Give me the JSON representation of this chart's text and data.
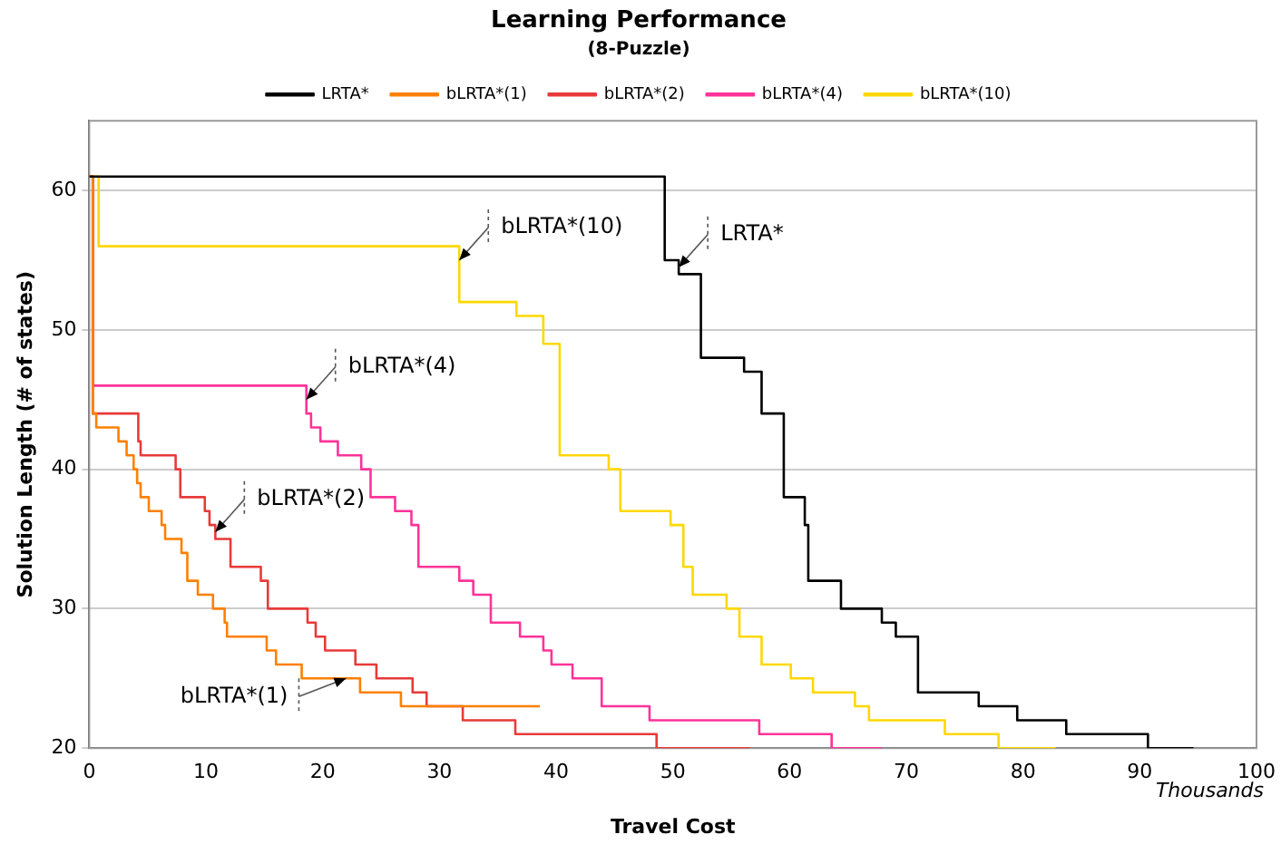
{
  "chart_data": {
    "type": "step",
    "title": "Learning Performance",
    "subtitle": "(8-Puzzle)",
    "xlabel": "Travel Cost",
    "ylabel": "Solution Length (# of states)",
    "xlim": [
      0,
      100
    ],
    "xticks": [
      0,
      10,
      20,
      30,
      40,
      50,
      60,
      70,
      80,
      90,
      100
    ],
    "ylim": [
      20,
      65
    ],
    "yticks": [
      20,
      30,
      40,
      50,
      60
    ],
    "grid": "y",
    "legend": "top",
    "marker": "none",
    "line_style": "solid",
    "series": [
      {
        "name": "LRTA*",
        "color": "#000000",
        "x": [
          0,
          49.3,
          50.5,
          52.4,
          56.1,
          57.6,
          59.5,
          61.3,
          61.6,
          64.4,
          67.9,
          69.1,
          71,
          76.2,
          79.5,
          83.7,
          90.7,
          94.6
        ],
        "values": [
          61,
          55,
          54,
          48,
          47,
          44,
          38,
          36,
          32,
          30,
          29,
          28,
          24,
          23,
          22,
          21,
          20,
          20
        ]
      },
      {
        "name": "bLRTA*(1)",
        "color": "#ff8000",
        "x": [
          0,
          0.3,
          0.6,
          2.5,
          3.2,
          3.8,
          4.1,
          4.4,
          5.1,
          6.2,
          6.5,
          7.9,
          8.4,
          9.3,
          10.6,
          11.6,
          11.8,
          15.2,
          16,
          18.2,
          23.2,
          26.7,
          38.6
        ],
        "values": [
          61,
          44,
          43,
          42,
          41,
          40,
          39,
          38,
          37,
          36,
          35,
          34,
          32,
          31,
          30,
          29,
          28,
          27,
          26,
          25,
          24,
          23,
          23
        ]
      },
      {
        "name": "bLRTA*(2)",
        "color": "#e83a3a",
        "x": [
          0,
          0.3,
          4.2,
          4.4,
          7.4,
          7.8,
          9.9,
          10.3,
          10.8,
          12.1,
          14.7,
          15.3,
          18.7,
          19.4,
          20.2,
          22.8,
          24.6,
          27.7,
          28.9,
          32,
          36.5,
          48.6,
          56.6
        ],
        "values": [
          61,
          44,
          42,
          41,
          40,
          38,
          37,
          36,
          35,
          33,
          32,
          30,
          29,
          28,
          27,
          26,
          25,
          24,
          23,
          22,
          21,
          20,
          20
        ]
      },
      {
        "name": "bLRTA*(4)",
        "color": "#ff3399",
        "x": [
          0,
          0.3,
          18.6,
          19,
          19.8,
          21.3,
          23.3,
          24.1,
          26.2,
          27.6,
          28.2,
          31.7,
          32.9,
          34.4,
          36.9,
          38.9,
          39.6,
          41.4,
          43.9,
          48,
          57.4,
          63.6,
          67.9
        ],
        "values": [
          61,
          46,
          44,
          43,
          42,
          41,
          40,
          38,
          37,
          36,
          33,
          32,
          31,
          29,
          28,
          27,
          26,
          25,
          23,
          22,
          21,
          20,
          20
        ]
      },
      {
        "name": "bLRTA*(10)",
        "color": "#ffd700",
        "x": [
          0,
          0.8,
          31.7,
          36.6,
          38.9,
          40.3,
          44.5,
          45.5,
          49.8,
          50.9,
          51.7,
          54.6,
          55.7,
          57.6,
          60.1,
          62,
          65.6,
          66.8,
          73.3,
          77.9,
          82.8
        ],
        "values": [
          61,
          56,
          52,
          51,
          49,
          41,
          40,
          37,
          36,
          33,
          31,
          30,
          28,
          26,
          25,
          24,
          23,
          22,
          21,
          20,
          20
        ]
      }
    ],
    "annotations": [
      {
        "text": "LRTA*",
        "x": 50.5,
        "y": 54.5
      },
      {
        "text": "bLRTA*(10)",
        "x": 31.7,
        "y": 55
      },
      {
        "text": "bLRTA*(4)",
        "x": 18.6,
        "y": 45
      },
      {
        "text": "bLRTA*(2)",
        "x": 10.8,
        "y": 35.5
      },
      {
        "text": "bLRTA*(1)",
        "x": 22,
        "y": 25
      },
      "Thousands"
    ]
  }
}
